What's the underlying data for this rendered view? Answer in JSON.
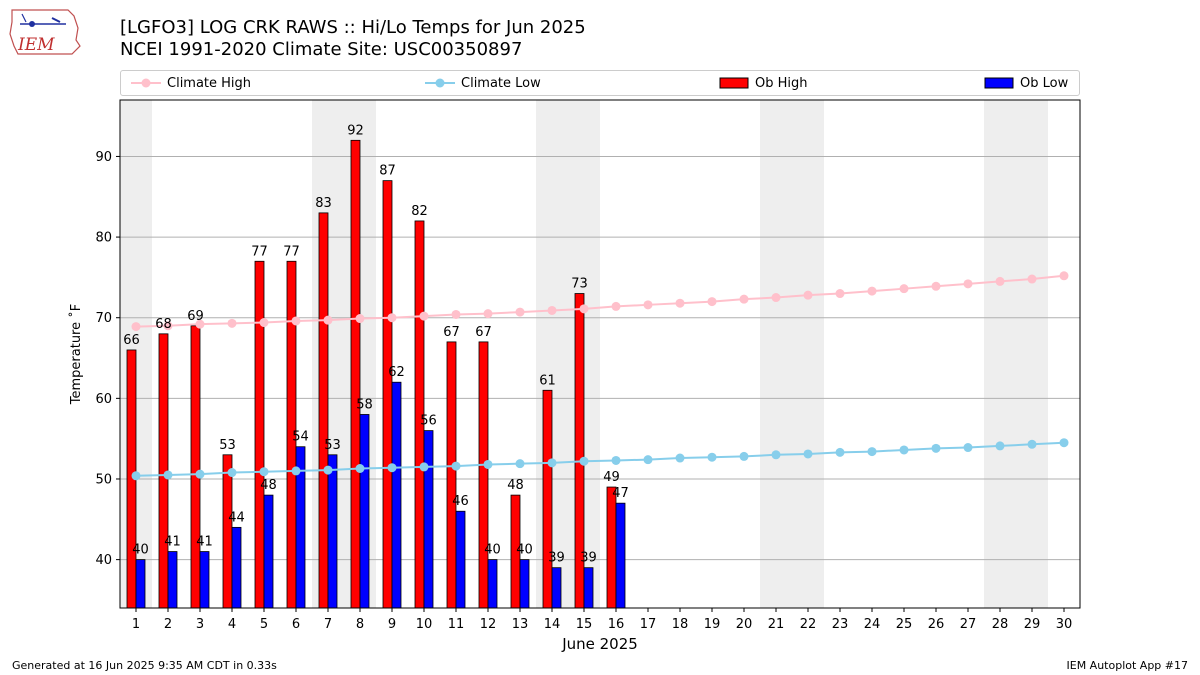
{
  "title": "[LGFO3] LOG CRK RAWS :: Hi/Lo Temps for Jun 2025",
  "subtitle": "NCEI 1991-2020 Climate Site: USC00350897",
  "logo_text": "IEM",
  "footer_left": "Generated at 16 Jun 2025 9:35 AM CDT in 0.33s",
  "footer_right": "IEM Autoplot App #17",
  "legend": {
    "climate_high": "Climate High",
    "climate_low": "Climate Low",
    "ob_high": "Ob High",
    "ob_low": "Ob Low"
  },
  "colors": {
    "climate_high": "#ffc0cb",
    "climate_low": "#87ceeb",
    "ob_high": "#ff0000",
    "ob_low": "#0000ff",
    "weekend_shade": "#eeeeee",
    "grid": "#b0b0b0"
  },
  "chart_data": {
    "type": "bar",
    "xlabel": "June 2025",
    "ylabel": "Temperature ˚F",
    "ylim": [
      34,
      97
    ],
    "yticks": [
      40,
      50,
      60,
      70,
      80,
      90
    ],
    "grid": "horizontal",
    "legend_position": "top",
    "days": [
      1,
      2,
      3,
      4,
      5,
      6,
      7,
      8,
      9,
      10,
      11,
      12,
      13,
      14,
      15,
      16,
      17,
      18,
      19,
      20,
      21,
      22,
      23,
      24,
      25,
      26,
      27,
      28,
      29,
      30
    ],
    "weekend_days": [
      1,
      7,
      8,
      14,
      15,
      21,
      22,
      28,
      29
    ],
    "series": [
      {
        "name": "Ob High",
        "type": "bar",
        "values": [
          66,
          68,
          69,
          53,
          77,
          77,
          83,
          92,
          87,
          82,
          67,
          67,
          48,
          61,
          73,
          49
        ]
      },
      {
        "name": "Ob Low",
        "type": "bar",
        "values": [
          40,
          41,
          41,
          44,
          48,
          54,
          53,
          58,
          62,
          56,
          46,
          40,
          40,
          39,
          39,
          47
        ]
      },
      {
        "name": "Climate High",
        "type": "line",
        "values": [
          68.9,
          69.0,
          69.2,
          69.3,
          69.4,
          69.6,
          69.7,
          69.9,
          70.0,
          70.2,
          70.4,
          70.5,
          70.7,
          70.9,
          71.1,
          71.4,
          71.6,
          71.8,
          72.0,
          72.3,
          72.5,
          72.8,
          73.0,
          73.3,
          73.6,
          73.9,
          74.2,
          74.5,
          74.8,
          75.2
        ]
      },
      {
        "name": "Climate Low",
        "type": "line",
        "values": [
          50.4,
          50.5,
          50.6,
          50.8,
          50.9,
          51.0,
          51.1,
          51.3,
          51.4,
          51.5,
          51.6,
          51.8,
          51.9,
          52.0,
          52.2,
          52.3,
          52.4,
          52.6,
          52.7,
          52.8,
          53.0,
          53.1,
          53.3,
          53.4,
          53.6,
          53.8,
          53.9,
          54.1,
          54.3,
          54.5
        ]
      }
    ]
  }
}
